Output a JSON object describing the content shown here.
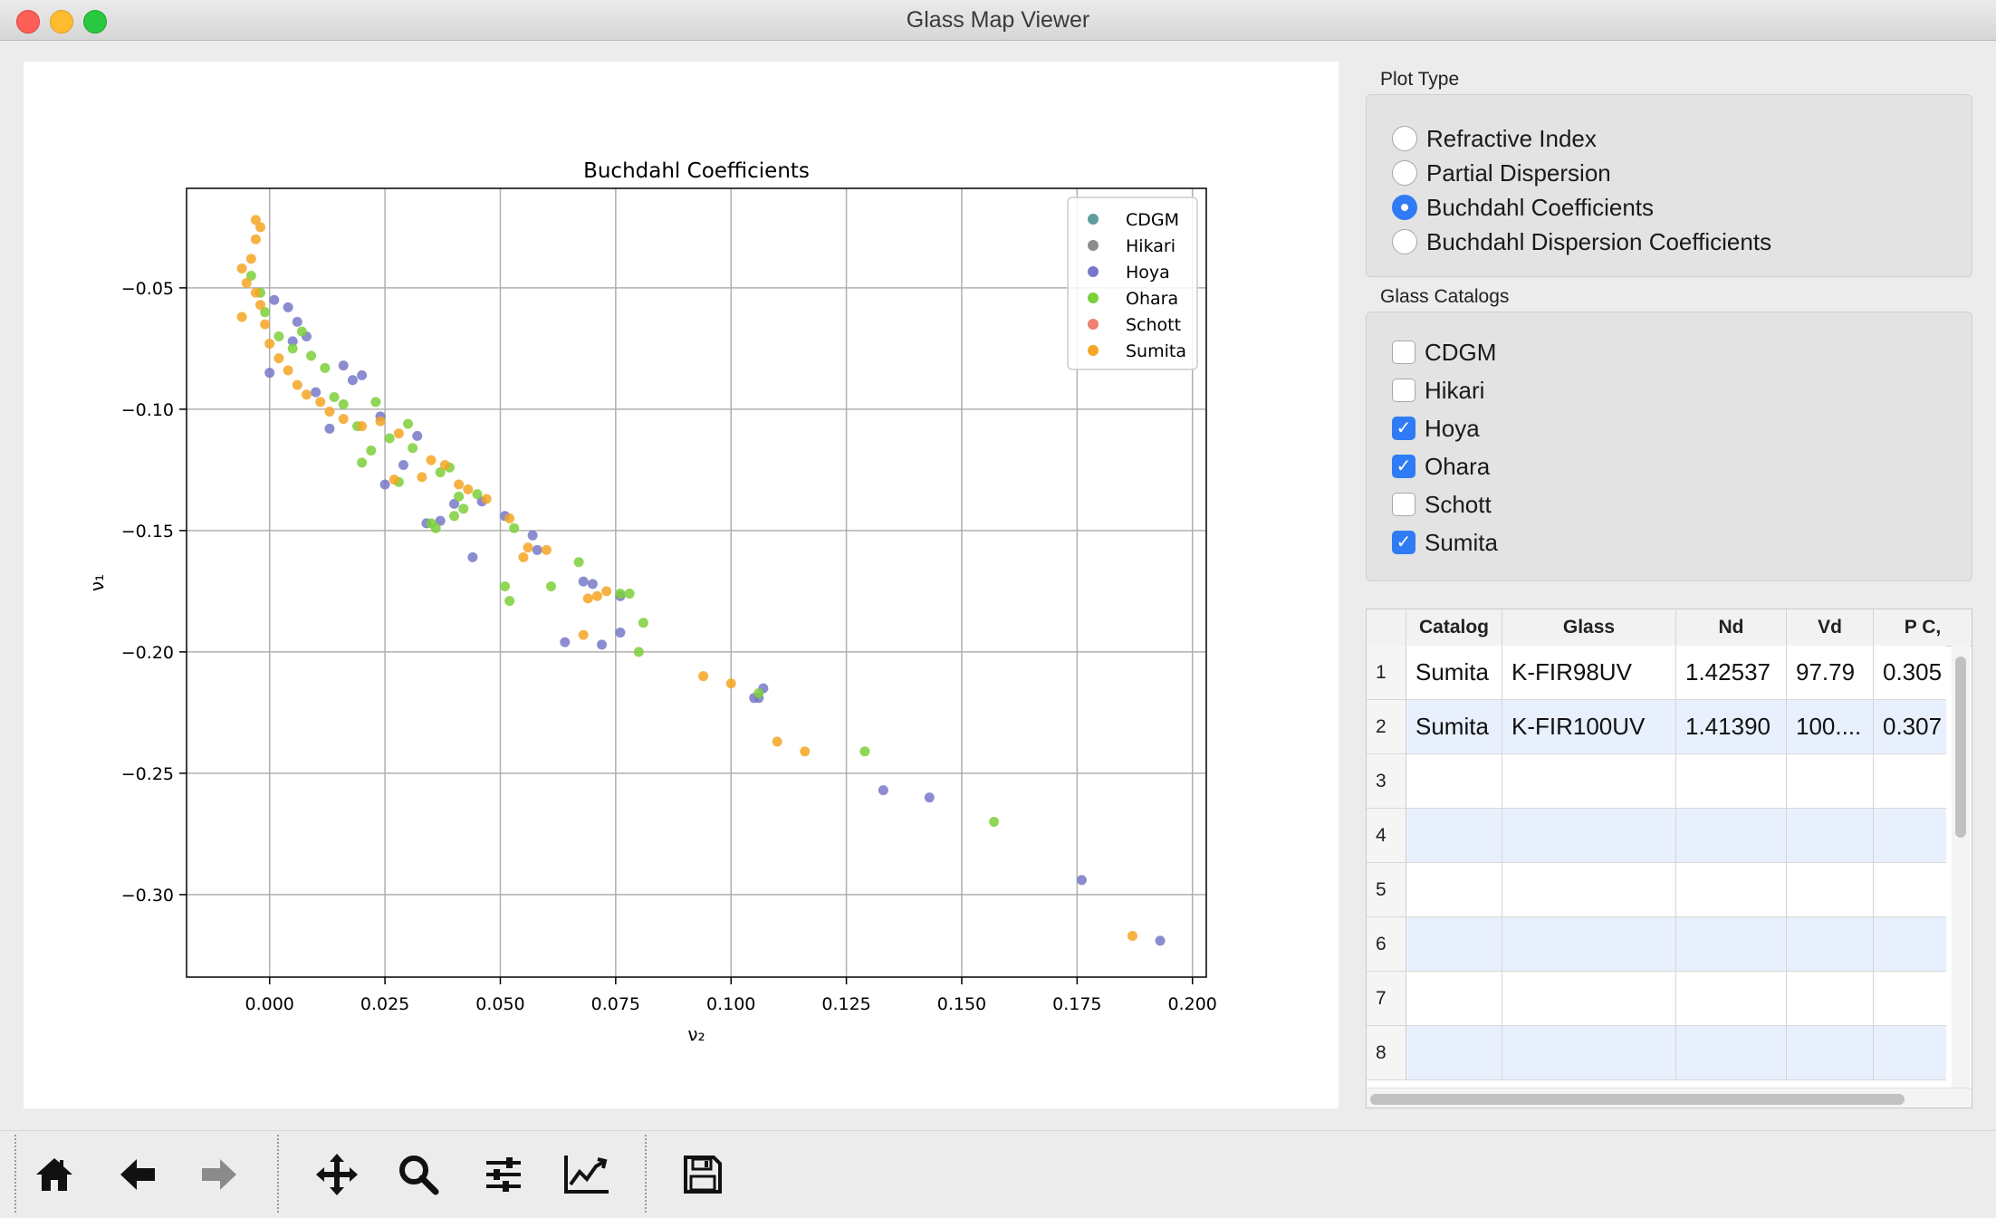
{
  "window": {
    "title": "Glass Map Viewer"
  },
  "chart_data": {
    "type": "scatter",
    "title": "Buchdahl Coefficients",
    "xlabel": "ν₂",
    "ylabel": "ν₁",
    "xlim": [
      -0.018,
      0.203
    ],
    "ylim": [
      -0.334,
      -0.009
    ],
    "xticks": [
      "0.000",
      "0.025",
      "0.050",
      "0.075",
      "0.100",
      "0.125",
      "0.150",
      "0.175",
      "0.200"
    ],
    "yticks": [
      "−0.05",
      "−0.10",
      "−0.15",
      "−0.20",
      "−0.25",
      "−0.30"
    ],
    "grid": true,
    "legend": "top-right",
    "series": [
      {
        "name": "CDGM",
        "color": "#5e9e9c",
        "points": []
      },
      {
        "name": "Hikari",
        "color": "#8c8c8c",
        "points": []
      },
      {
        "name": "Hoya",
        "color": "#7878c8",
        "points": [
          [
            0.001,
            -0.055
          ],
          [
            0.004,
            -0.058
          ],
          [
            0.006,
            -0.064
          ],
          [
            0.0,
            -0.085
          ],
          [
            0.005,
            -0.072
          ],
          [
            0.008,
            -0.07
          ],
          [
            0.01,
            -0.093
          ],
          [
            0.013,
            -0.108
          ],
          [
            0.016,
            -0.082
          ],
          [
            0.018,
            -0.088
          ],
          [
            0.02,
            -0.086
          ],
          [
            0.024,
            -0.103
          ],
          [
            0.025,
            -0.131
          ],
          [
            0.029,
            -0.123
          ],
          [
            0.032,
            -0.111
          ],
          [
            0.034,
            -0.147
          ],
          [
            0.037,
            -0.146
          ],
          [
            0.04,
            -0.139
          ],
          [
            0.044,
            -0.161
          ],
          [
            0.046,
            -0.138
          ],
          [
            0.051,
            -0.144
          ],
          [
            0.057,
            -0.152
          ],
          [
            0.058,
            -0.158
          ],
          [
            0.064,
            -0.196
          ],
          [
            0.068,
            -0.171
          ],
          [
            0.07,
            -0.172
          ],
          [
            0.072,
            -0.197
          ],
          [
            0.076,
            -0.192
          ],
          [
            0.076,
            -0.177
          ],
          [
            0.105,
            -0.219
          ],
          [
            0.106,
            -0.219
          ],
          [
            0.107,
            -0.215
          ],
          [
            0.133,
            -0.257
          ],
          [
            0.143,
            -0.26
          ],
          [
            0.176,
            -0.294
          ],
          [
            0.193,
            -0.319
          ]
        ]
      },
      {
        "name": "Ohara",
        "color": "#7ccf3a",
        "points": [
          [
            -0.004,
            -0.045
          ],
          [
            -0.002,
            -0.052
          ],
          [
            -0.001,
            -0.06
          ],
          [
            0.002,
            -0.07
          ],
          [
            0.005,
            -0.075
          ],
          [
            0.007,
            -0.068
          ],
          [
            0.009,
            -0.078
          ],
          [
            0.012,
            -0.083
          ],
          [
            0.014,
            -0.095
          ],
          [
            0.016,
            -0.098
          ],
          [
            0.019,
            -0.107
          ],
          [
            0.02,
            -0.122
          ],
          [
            0.022,
            -0.117
          ],
          [
            0.023,
            -0.097
          ],
          [
            0.026,
            -0.112
          ],
          [
            0.028,
            -0.13
          ],
          [
            0.03,
            -0.106
          ],
          [
            0.031,
            -0.116
          ],
          [
            0.035,
            -0.147
          ],
          [
            0.036,
            -0.149
          ],
          [
            0.037,
            -0.126
          ],
          [
            0.039,
            -0.124
          ],
          [
            0.04,
            -0.144
          ],
          [
            0.041,
            -0.136
          ],
          [
            0.042,
            -0.141
          ],
          [
            0.045,
            -0.135
          ],
          [
            0.051,
            -0.173
          ],
          [
            0.052,
            -0.179
          ],
          [
            0.053,
            -0.149
          ],
          [
            0.061,
            -0.173
          ],
          [
            0.067,
            -0.163
          ],
          [
            0.076,
            -0.176
          ],
          [
            0.078,
            -0.176
          ],
          [
            0.08,
            -0.2
          ],
          [
            0.081,
            -0.188
          ],
          [
            0.106,
            -0.217
          ],
          [
            0.129,
            -0.241
          ],
          [
            0.157,
            -0.27
          ]
        ]
      },
      {
        "name": "Schott",
        "color": "#f08070",
        "points": []
      },
      {
        "name": "Sumita",
        "color": "#f5a623",
        "points": [
          [
            -0.003,
            -0.022
          ],
          [
            -0.002,
            -0.025
          ],
          [
            -0.003,
            -0.03
          ],
          [
            -0.004,
            -0.038
          ],
          [
            -0.006,
            -0.042
          ],
          [
            -0.005,
            -0.048
          ],
          [
            -0.003,
            -0.052
          ],
          [
            -0.002,
            -0.057
          ],
          [
            -0.006,
            -0.062
          ],
          [
            -0.001,
            -0.065
          ],
          [
            0.0,
            -0.073
          ],
          [
            0.002,
            -0.079
          ],
          [
            0.004,
            -0.084
          ],
          [
            0.006,
            -0.09
          ],
          [
            0.008,
            -0.094
          ],
          [
            0.011,
            -0.097
          ],
          [
            0.013,
            -0.101
          ],
          [
            0.016,
            -0.104
          ],
          [
            0.02,
            -0.107
          ],
          [
            0.024,
            -0.105
          ],
          [
            0.027,
            -0.129
          ],
          [
            0.028,
            -0.11
          ],
          [
            0.033,
            -0.128
          ],
          [
            0.035,
            -0.121
          ],
          [
            0.038,
            -0.123
          ],
          [
            0.041,
            -0.131
          ],
          [
            0.043,
            -0.133
          ],
          [
            0.047,
            -0.137
          ],
          [
            0.052,
            -0.145
          ],
          [
            0.055,
            -0.161
          ],
          [
            0.056,
            -0.157
          ],
          [
            0.06,
            -0.158
          ],
          [
            0.068,
            -0.193
          ],
          [
            0.069,
            -0.178
          ],
          [
            0.071,
            -0.177
          ],
          [
            0.073,
            -0.175
          ],
          [
            0.094,
            -0.21
          ],
          [
            0.1,
            -0.213
          ],
          [
            0.11,
            -0.237
          ],
          [
            0.116,
            -0.241
          ],
          [
            0.187,
            -0.317
          ]
        ]
      }
    ]
  },
  "panel": {
    "plot_type": {
      "title": "Plot Type",
      "options": [
        {
          "label": "Refractive Index",
          "selected": false
        },
        {
          "label": "Partial Dispersion",
          "selected": false
        },
        {
          "label": "Buchdahl Coefficients",
          "selected": true
        },
        {
          "label": "Buchdahl Dispersion Coefficients",
          "selected": false
        }
      ]
    },
    "catalogs": {
      "title": "Glass Catalogs",
      "options": [
        {
          "label": "CDGM",
          "checked": false
        },
        {
          "label": "Hikari",
          "checked": false
        },
        {
          "label": "Hoya",
          "checked": true
        },
        {
          "label": "Ohara",
          "checked": true
        },
        {
          "label": "Schott",
          "checked": false
        },
        {
          "label": "Sumita",
          "checked": true
        }
      ]
    },
    "table": {
      "columns": [
        "Catalog",
        "Glass",
        "Nd",
        "Vd",
        "P C,"
      ],
      "row_numbers": [
        "1",
        "2",
        "3",
        "4",
        "5",
        "6",
        "7",
        "8"
      ],
      "rows": [
        [
          "Sumita",
          "K-FIR98UV",
          "1.42537",
          "97.79",
          "0.305"
        ],
        [
          "Sumita",
          "K-FIR100UV",
          "1.41390",
          "100....",
          "0.307"
        ]
      ]
    }
  },
  "toolbar": {
    "buttons": [
      "home-icon",
      "back-arrow-icon",
      "forward-arrow-icon",
      "pan-icon",
      "zoom-icon",
      "configure-icon",
      "edit-axes-icon",
      "save-icon"
    ]
  }
}
